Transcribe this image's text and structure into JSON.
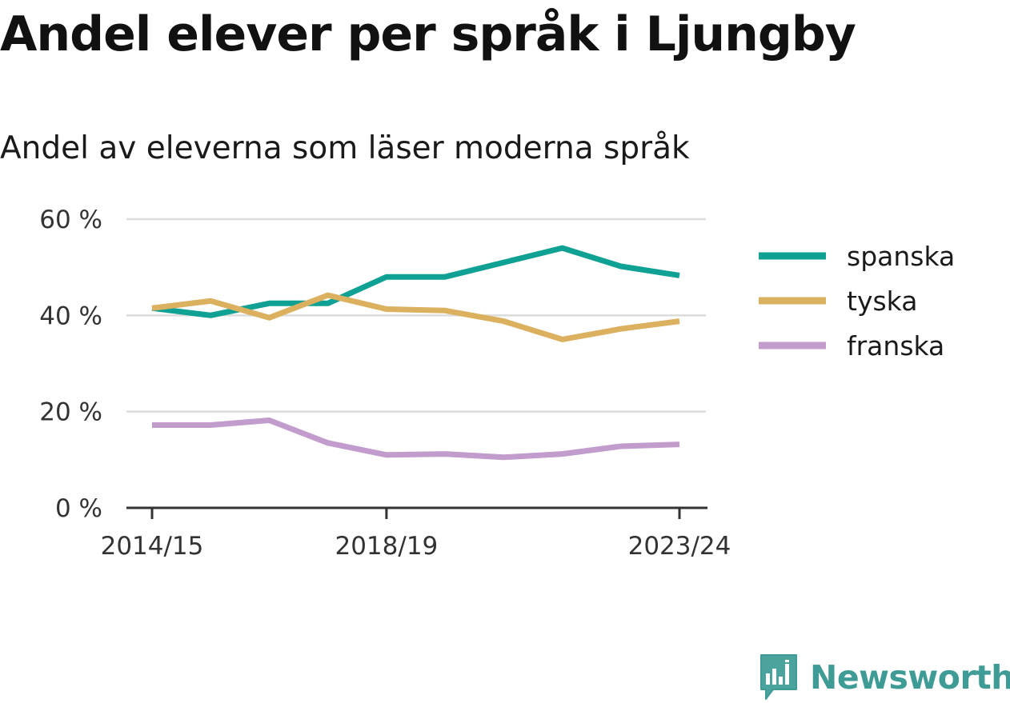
{
  "title": "Andel elever per språk i Ljungby",
  "subtitle": "Andel av eleverna som läser moderna språk",
  "brand": {
    "name": "Newsworthy",
    "icon": "newsworthy-logo-icon",
    "color": "#3f9b95"
  },
  "chart_data": {
    "type": "line",
    "x": [
      "2014/15",
      "2015/16",
      "2016/17",
      "2017/18",
      "2018/19",
      "2019/20",
      "2020/21",
      "2021/22",
      "2022/23",
      "2023/24"
    ],
    "x_tick_labels": [
      "2014/15",
      "2018/19",
      "2023/24"
    ],
    "y_ticks": [
      "0 %",
      "20 %",
      "40 %",
      "60 %"
    ],
    "y_tick_values": [
      0,
      20,
      40,
      60
    ],
    "ylim": [
      0,
      60
    ],
    "grid": true,
    "legend": "right",
    "series": [
      {
        "name": "spanska",
        "color": "#0fa294",
        "values": [
          41.5,
          40.0,
          42.5,
          42.5,
          48.0,
          48.0,
          51.0,
          54.0,
          50.2,
          48.3
        ]
      },
      {
        "name": "tyska",
        "color": "#dbb05f",
        "values": [
          41.5,
          43.0,
          39.5,
          44.2,
          41.3,
          41.0,
          38.8,
          35.0,
          37.2,
          38.8
        ]
      },
      {
        "name": "franska",
        "color": "#c29ccc",
        "values": [
          17.2,
          17.2,
          18.2,
          13.5,
          11.0,
          11.2,
          10.5,
          11.2,
          12.8,
          13.2
        ]
      }
    ]
  }
}
